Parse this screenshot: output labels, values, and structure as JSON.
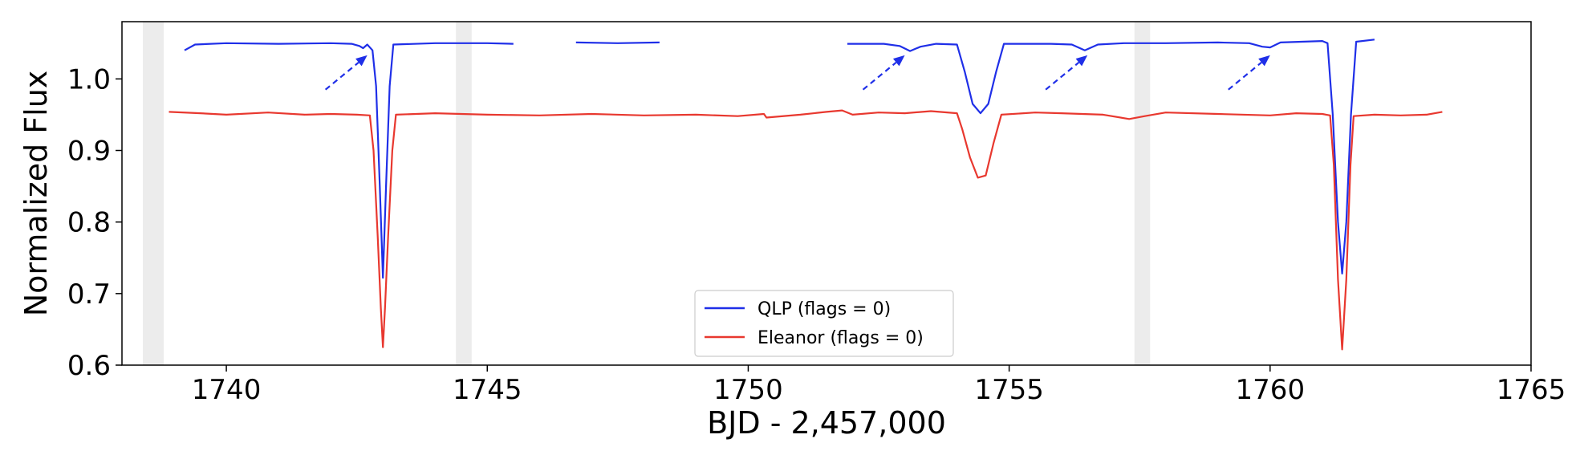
{
  "chart_data": {
    "type": "line",
    "xlabel": "BJD - 2,457,000",
    "ylabel": "Normalized Flux",
    "xlim": [
      1738,
      1765
    ],
    "ylim": [
      0.6,
      1.08
    ],
    "x_ticks": [
      1740,
      1745,
      1750,
      1755,
      1760,
      1765
    ],
    "y_ticks": [
      0.6,
      0.7,
      0.8,
      0.9,
      1.0
    ],
    "x_tick_labels": [
      "1740",
      "1745",
      "1750",
      "1755",
      "1760",
      "1765"
    ],
    "y_tick_labels": [
      "0.6",
      "0.7",
      "0.8",
      "0.9",
      "1.0"
    ],
    "grid": false,
    "legend_position": "bottom-center",
    "shaded_regions": [
      [
        1738.4,
        1738.8
      ],
      [
        1744.4,
        1744.7
      ],
      [
        1757.4,
        1757.7
      ]
    ],
    "series": [
      {
        "name": "QLP (flags = 0)",
        "color": "#1f2fe8",
        "segments": [
          [
            [
              1739.2,
              1.04
            ],
            [
              1739.4,
              1.048
            ],
            [
              1740.0,
              1.05
            ],
            [
              1741.0,
              1.049
            ],
            [
              1742.0,
              1.05
            ],
            [
              1742.4,
              1.049
            ],
            [
              1742.55,
              1.046
            ],
            [
              1742.62,
              1.043
            ],
            [
              1742.7,
              1.048
            ],
            [
              1742.8,
              1.04
            ],
            [
              1742.87,
              0.99
            ],
            [
              1742.94,
              0.85
            ],
            [
              1743.0,
              0.722
            ],
            [
              1743.06,
              0.85
            ],
            [
              1743.13,
              0.99
            ],
            [
              1743.2,
              1.048
            ],
            [
              1744.0,
              1.05
            ],
            [
              1745.0,
              1.05
            ],
            [
              1745.5,
              1.049
            ]
          ],
          [
            [
              1746.7,
              1.051
            ],
            [
              1747.5,
              1.05
            ],
            [
              1748.3,
              1.051
            ]
          ],
          [
            [
              1751.9,
              1.049
            ],
            [
              1752.6,
              1.049
            ],
            [
              1752.9,
              1.046
            ],
            [
              1753.1,
              1.039
            ],
            [
              1753.3,
              1.045
            ],
            [
              1753.6,
              1.049
            ],
            [
              1754.0,
              1.048
            ],
            [
              1754.15,
              1.01
            ],
            [
              1754.3,
              0.965
            ],
            [
              1754.45,
              0.952
            ],
            [
              1754.6,
              0.965
            ],
            [
              1754.75,
              1.01
            ],
            [
              1754.9,
              1.049
            ],
            [
              1755.8,
              1.049
            ],
            [
              1756.2,
              1.048
            ],
            [
              1756.45,
              1.04
            ],
            [
              1756.7,
              1.048
            ],
            [
              1757.2,
              1.05
            ],
            [
              1758.0,
              1.05
            ],
            [
              1759.0,
              1.051
            ],
            [
              1759.6,
              1.05
            ],
            [
              1759.85,
              1.045
            ],
            [
              1760.0,
              1.044
            ],
            [
              1760.2,
              1.051
            ],
            [
              1761.0,
              1.053
            ],
            [
              1761.1,
              1.05
            ],
            [
              1761.2,
              0.95
            ],
            [
              1761.3,
              0.8
            ],
            [
              1761.38,
              0.728
            ],
            [
              1761.46,
              0.8
            ],
            [
              1761.55,
              0.95
            ],
            [
              1761.65,
              1.052
            ],
            [
              1762.0,
              1.055
            ]
          ]
        ]
      },
      {
        "name": "Eleanor (flags = 0)",
        "color": "#e8382f",
        "segments": [
          [
            [
              1738.9,
              0.954
            ],
            [
              1739.5,
              0.952
            ],
            [
              1740.0,
              0.95
            ],
            [
              1740.8,
              0.953
            ],
            [
              1741.5,
              0.95
            ],
            [
              1742.0,
              0.951
            ],
            [
              1742.5,
              0.95
            ],
            [
              1742.75,
              0.949
            ],
            [
              1742.82,
              0.9
            ],
            [
              1742.9,
              0.78
            ],
            [
              1742.96,
              0.68
            ],
            [
              1743.0,
              0.625
            ],
            [
              1743.04,
              0.68
            ],
            [
              1743.1,
              0.78
            ],
            [
              1743.18,
              0.9
            ],
            [
              1743.25,
              0.95
            ],
            [
              1744.0,
              0.952
            ],
            [
              1745.0,
              0.95
            ],
            [
              1746.0,
              0.949
            ],
            [
              1747.0,
              0.951
            ],
            [
              1748.0,
              0.949
            ],
            [
              1749.0,
              0.95
            ],
            [
              1749.8,
              0.948
            ],
            [
              1750.3,
              0.951
            ],
            [
              1750.35,
              0.946
            ],
            [
              1751.0,
              0.95
            ],
            [
              1751.5,
              0.954
            ],
            [
              1751.8,
              0.956
            ],
            [
              1752.0,
              0.95
            ],
            [
              1752.5,
              0.953
            ],
            [
              1753.0,
              0.952
            ],
            [
              1753.5,
              0.955
            ],
            [
              1754.0,
              0.952
            ],
            [
              1754.1,
              0.93
            ],
            [
              1754.25,
              0.89
            ],
            [
              1754.4,
              0.862
            ],
            [
              1754.55,
              0.865
            ],
            [
              1754.7,
              0.91
            ],
            [
              1754.85,
              0.95
            ],
            [
              1755.5,
              0.953
            ],
            [
              1756.0,
              0.952
            ],
            [
              1756.8,
              0.95
            ],
            [
              1757.3,
              0.944
            ],
            [
              1757.6,
              0.948
            ],
            [
              1758.0,
              0.953
            ],
            [
              1759.0,
              0.951
            ],
            [
              1760.0,
              0.949
            ],
            [
              1760.5,
              0.952
            ],
            [
              1761.0,
              0.951
            ],
            [
              1761.15,
              0.949
            ],
            [
              1761.22,
              0.88
            ],
            [
              1761.3,
              0.72
            ],
            [
              1761.38,
              0.622
            ],
            [
              1761.46,
              0.72
            ],
            [
              1761.54,
              0.88
            ],
            [
              1761.6,
              0.948
            ],
            [
              1762.0,
              0.95
            ],
            [
              1762.5,
              0.949
            ],
            [
              1763.0,
              0.95
            ],
            [
              1763.3,
              0.954
            ]
          ]
        ]
      }
    ],
    "annotations": [
      {
        "type": "dashed-arrow",
        "from": [
          1741.9,
          0.985
        ],
        "to": [
          1742.7,
          1.033
        ]
      },
      {
        "type": "dashed-arrow",
        "from": [
          1752.2,
          0.985
        ],
        "to": [
          1753.0,
          1.033
        ]
      },
      {
        "type": "dashed-arrow",
        "from": [
          1755.7,
          0.985
        ],
        "to": [
          1756.5,
          1.033
        ]
      },
      {
        "type": "dashed-arrow",
        "from": [
          1759.2,
          0.985
        ],
        "to": [
          1760.0,
          1.033
        ]
      }
    ],
    "annotation_color": "#1f2fe8"
  }
}
